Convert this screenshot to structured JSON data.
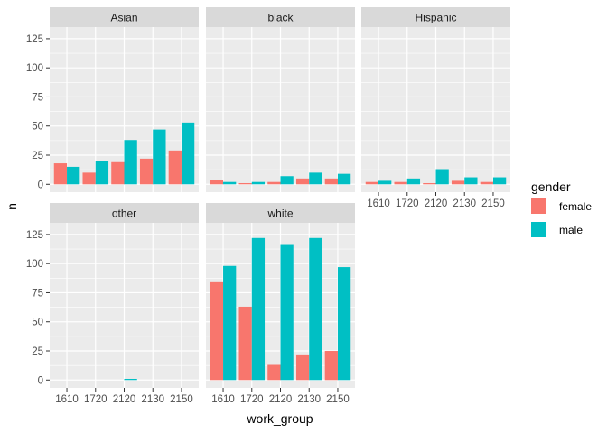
{
  "chart_data": {
    "type": "bar",
    "xlabel": "work_group",
    "ylabel": "n",
    "ylim": [
      0,
      135
    ],
    "yticks": [
      0,
      25,
      50,
      75,
      100,
      125
    ],
    "categories": [
      "1610",
      "1720",
      "2120",
      "2130",
      "2150"
    ],
    "legend": {
      "title": "gender",
      "position": "right",
      "items": [
        {
          "label": "female",
          "color": "#F8766D"
        },
        {
          "label": "male",
          "color": "#00BFC4"
        }
      ]
    },
    "panel_background": "#EBEBEB",
    "strip_background": "#D9D9D9",
    "grid": true,
    "facets": [
      {
        "title": "Asian",
        "series": [
          {
            "name": "female",
            "color": "#F8766D",
            "values": [
              18,
              10,
              19,
              22,
              29
            ]
          },
          {
            "name": "male",
            "color": "#00BFC4",
            "values": [
              15,
              20,
              38,
              47,
              53
            ]
          }
        ]
      },
      {
        "title": "black",
        "series": [
          {
            "name": "female",
            "color": "#F8766D",
            "values": [
              4,
              1,
              2,
              5,
              5
            ]
          },
          {
            "name": "male",
            "color": "#00BFC4",
            "values": [
              2,
              2,
              7,
              10,
              9
            ]
          }
        ]
      },
      {
        "title": "Hispanic",
        "series": [
          {
            "name": "female",
            "color": "#F8766D",
            "values": [
              2,
              2,
              1,
              3,
              2
            ]
          },
          {
            "name": "male",
            "color": "#00BFC4",
            "values": [
              3,
              5,
              13,
              6,
              6
            ]
          }
        ]
      },
      {
        "title": "other",
        "series": [
          {
            "name": "female",
            "color": "#F8766D",
            "values": [
              0,
              0,
              0,
              0,
              0
            ]
          },
          {
            "name": "male",
            "color": "#00BFC4",
            "values": [
              0,
              0,
              1,
              0,
              0
            ]
          }
        ]
      },
      {
        "title": "white",
        "series": [
          {
            "name": "female",
            "color": "#F8766D",
            "values": [
              84,
              63,
              13,
              22,
              25
            ]
          },
          {
            "name": "male",
            "color": "#00BFC4",
            "values": [
              98,
              122,
              116,
              122,
              97
            ]
          }
        ]
      }
    ]
  }
}
